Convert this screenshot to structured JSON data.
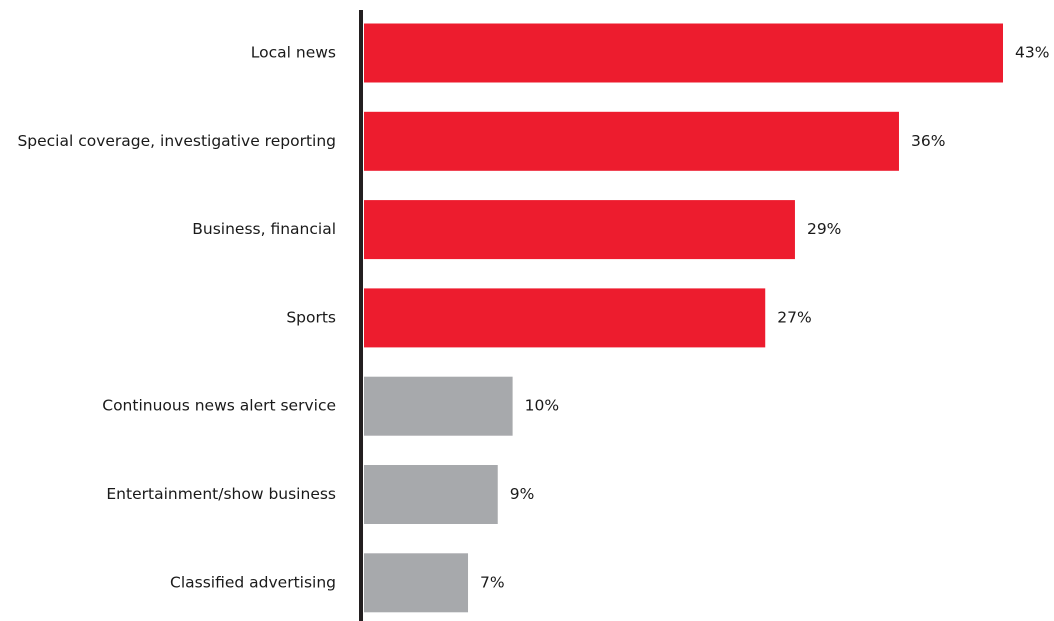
{
  "chart_data": {
    "type": "bar",
    "orientation": "horizontal",
    "categories": [
      "Local news",
      "Special coverage, investigative reporting",
      "Business, financial ",
      "Sports ",
      "Continuous news alert service",
      "Entertainment/show business ",
      "Classified advertising"
    ],
    "values": [
      43,
      36,
      29,
      27,
      10,
      9,
      7
    ],
    "value_labels": [
      "43%",
      "36%",
      "29%",
      "27%",
      "10%",
      "9%",
      "7%"
    ],
    "unit": "%",
    "highlight_color": "#ed1c2e",
    "muted_color": "#a7a9ac",
    "axis_color": "#231f20",
    "highlighted_count": 4,
    "xlim": [
      0,
      43
    ],
    "grid": false,
    "legend": "none"
  }
}
